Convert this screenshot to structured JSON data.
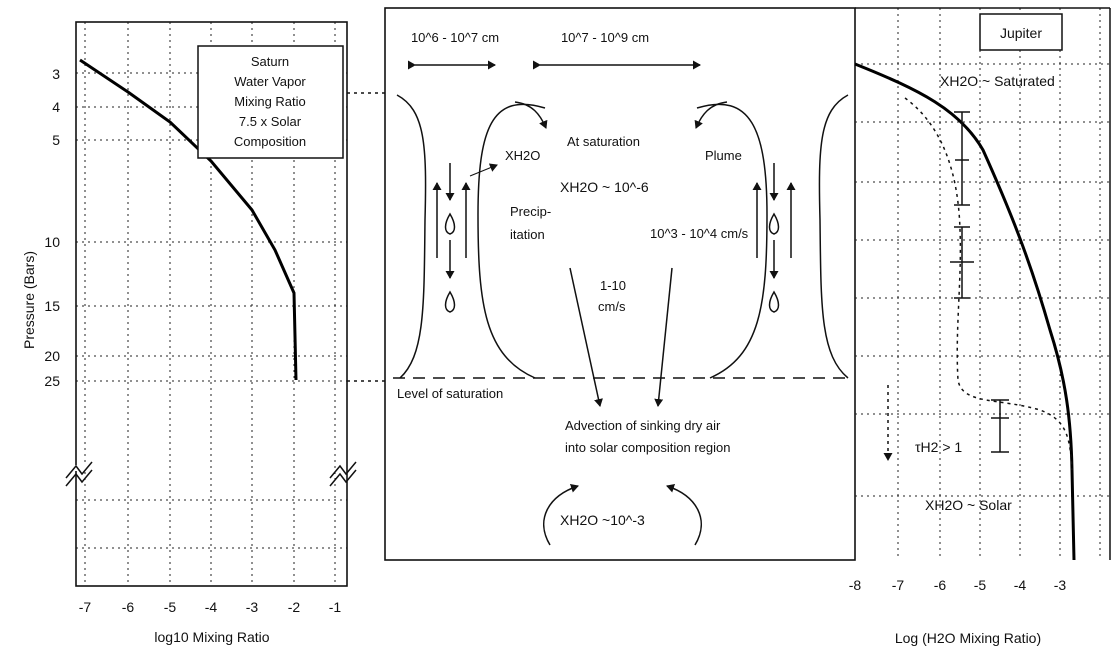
{
  "saturn": {
    "box": [
      "Saturn",
      "Water Vapor",
      "Mixing Ratio",
      "7.5 x Solar",
      "Composition"
    ],
    "ylabel": "Pressure (Bars)",
    "xlabel": "log10 Mixing Ratio",
    "yticks": [
      "3",
      "4",
      "5",
      "10",
      "15",
      "20",
      "25"
    ],
    "xticks": [
      "-7",
      "-6",
      "-5",
      "-4",
      "-3",
      "-2",
      "-1"
    ]
  },
  "middle": {
    "scale_left": "10^6 - 10^7 cm",
    "scale_right": "10^7 - 10^9 cm",
    "at_saturation": "At saturation",
    "x_h2o_left": "XH2O",
    "plume": "Plume",
    "x_h2o_center": "XH2O ~ 10^-6",
    "precip_1": "Precip-",
    "precip_2": "itation",
    "updraft": "10^3 - 10^4 cm/s",
    "downdraft_1": "1-10",
    "downdraft_2": "cm/s",
    "level": "Level of saturation",
    "advection_1": "Advection of sinking dry air",
    "advection_2": "into solar composition region",
    "x_h2o_bottom": "XH2O ~10^-3"
  },
  "jupiter": {
    "title": "Jupiter",
    "saturated": "XH2O ~ Saturated",
    "tau": "τH2 > 1",
    "solar": "XH2O ~ Solar",
    "xlabel": "Log (H2O Mixing Ratio)",
    "xticks": [
      "-8",
      "-7",
      "-6",
      "-5",
      "-4",
      "-3"
    ]
  },
  "chart_data": [
    {
      "type": "line",
      "series": [
        {
          "x": [
            -7,
            -6,
            -5,
            -4.5,
            -4,
            -3.5,
            -3,
            -2.5,
            -2
          ],
          "y": [
            3.1,
            3.7,
            4.8,
            5.6,
            7.1,
            8.5,
            10.5,
            15,
            25
          ]
        }
      ],
      "xlabel": "log10 Mixing Ratio",
      "ylabel": "Pressure (Bars)",
      "xlim": [
        -7.2,
        -0.7
      ],
      "grid": true
    },
    {
      "type": "line",
      "series": [
        {
          "x": [
            -8,
            -6.5,
            -5.5,
            -4.9,
            -4.3,
            -3.7,
            -3.3,
            -3.0,
            -2.85,
            -2.8,
            -2.75
          ],
          "y": [
            0,
            0.05,
            0.1,
            0.17,
            0.27,
            0.4,
            0.55,
            0.7,
            0.78,
            0.9,
            1
          ]
        }
      ],
      "xlabel": "Log (H2O Mixing Ratio)",
      "xlim": [
        -8,
        -2.5
      ],
      "grid": true
    }
  ]
}
